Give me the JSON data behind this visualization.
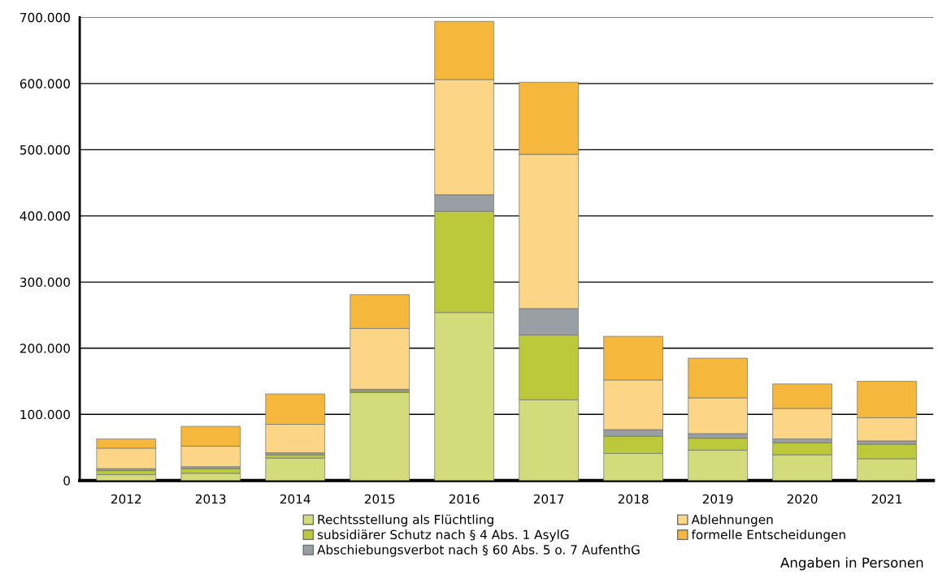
{
  "chart_data": {
    "type": "bar",
    "stacked": true,
    "categories": [
      "2012",
      "2013",
      "2014",
      "2015",
      "2016",
      "2017",
      "2018",
      "2019",
      "2020",
      "2021"
    ],
    "series": [
      {
        "name": "Rechtsstellung als Flüchtling",
        "color": "#d3dc7a",
        "values": [
          9000,
          11000,
          34000,
          133000,
          254000,
          122000,
          41000,
          46000,
          39000,
          33000
        ]
      },
      {
        "name": "subsidiärer Schutz nach § 4 Abs. 1 AsylG",
        "color": "#bcc93a",
        "values": [
          6000,
          7000,
          5000,
          2000,
          153000,
          98000,
          26000,
          18000,
          18000,
          22000
        ]
      },
      {
        "name": "Abschiebungsverbot nach § 60 Abs. 5 o. 7 AufenthG",
        "color": "#9a9fa3",
        "values": [
          3000,
          3000,
          3000,
          3000,
          25000,
          40000,
          10000,
          7000,
          6000,
          5000
        ]
      },
      {
        "name": "Ablehnungen",
        "color": "#fdd587",
        "values": [
          31000,
          31000,
          43000,
          92000,
          174000,
          233000,
          75000,
          54000,
          46000,
          35000
        ]
      },
      {
        "name": "formelle Entscheidungen",
        "color": "#f5b83d",
        "values": [
          14000,
          30000,
          46000,
          51000,
          88000,
          109000,
          66000,
          60000,
          37000,
          55000
        ]
      }
    ],
    "ylim": [
      0,
      700000
    ],
    "yticks": [
      {
        "value": 0,
        "label": "0"
      },
      {
        "value": 100000,
        "label": "100.000"
      },
      {
        "value": 200000,
        "label": "200.000"
      },
      {
        "value": 300000,
        "label": "300.000"
      },
      {
        "value": 400000,
        "label": "400.000"
      },
      {
        "value": 500000,
        "label": "500.000"
      },
      {
        "value": 600000,
        "label": "600.000"
      },
      {
        "value": 700000,
        "label": "700.000"
      }
    ],
    "grid": "y",
    "legend": "bottom",
    "annotations": [
      "Angaben in Personen"
    ]
  }
}
